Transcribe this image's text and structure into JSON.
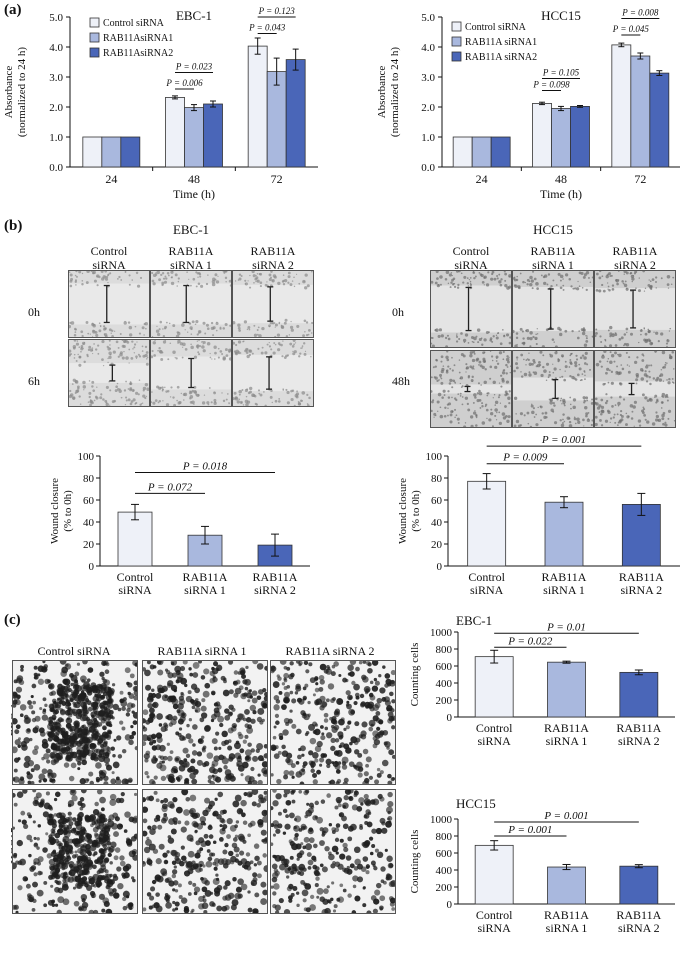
{
  "figure": {
    "panel_a_label": "(a)",
    "panel_b_label": "(b)",
    "panel_c_label": "(c)"
  },
  "colors": {
    "control": "#eef1f8",
    "sirna1": "#a9b8de",
    "sirna2": "#4a66b8",
    "axis": "#111111"
  },
  "panel_b": {
    "ebc1_title": "EBC-1",
    "hcc15_title": "HCC15",
    "columns": [
      "Control\nsiRNA",
      "RAB11A\nsiRNA 1",
      "RAB11A\nsiRNA 2"
    ],
    "ebc1_rows": [
      "0h",
      "6h"
    ],
    "hcc15_rows": [
      "0h",
      "48h"
    ]
  },
  "panel_c": {
    "columns": [
      "Control siRNA",
      "RAB11A siRNA 1",
      "RAB11A siRNA 2"
    ],
    "rows": [
      "EBC-1",
      "HCC15"
    ]
  },
  "chart_data": [
    {
      "id": "a-ebc1",
      "type": "bar",
      "title": "EBC-1",
      "xlabel": "Time (h)",
      "ylabel": "Absorbance\n(normalized to 24 h)",
      "ylim": [
        0,
        5
      ],
      "yticks": [
        "0.0",
        "1.0",
        "2.0",
        "3.0",
        "4.0",
        "5.0"
      ],
      "categories": [
        "24",
        "48",
        "72"
      ],
      "legend_position": "top-left",
      "series": [
        {
          "name": "Control siRNA",
          "values": [
            1.0,
            2.32,
            4.03
          ],
          "errors": [
            0,
            0.05,
            0.27
          ]
        },
        {
          "name": "RAB11AsiRNA1",
          "values": [
            1.0,
            1.98,
            3.18
          ],
          "errors": [
            0,
            0.1,
            0.45
          ]
        },
        {
          "name": "RAB11AsiRNA2",
          "values": [
            1.0,
            2.1,
            3.58
          ],
          "errors": [
            0,
            0.1,
            0.35
          ]
        }
      ],
      "annotations": [
        {
          "text": "P = 0.006",
          "cat": 1,
          "from": 0,
          "to": 1,
          "y": 2.6
        },
        {
          "text": "P = 0.023",
          "cat": 1,
          "from": 0,
          "to": 2,
          "y": 3.15
        },
        {
          "text": "P = 0.043",
          "cat": 2,
          "from": 0,
          "to": 1,
          "y": 4.45
        },
        {
          "text": "P = 0.123",
          "cat": 2,
          "from": 0,
          "to": 2,
          "y": 5.0
        }
      ]
    },
    {
      "id": "a-hcc15",
      "type": "bar",
      "title": "HCC15",
      "xlabel": "Time (h)",
      "ylabel": "Absorbance\n(normalized to 24 h)",
      "ylim": [
        0,
        5
      ],
      "yticks": [
        "0.0",
        "1.0",
        "2.0",
        "3.0",
        "4.0",
        "5.0"
      ],
      "categories": [
        "24",
        "48",
        "72"
      ],
      "legend_position": "top-left",
      "series": [
        {
          "name": "Control siRNA",
          "values": [
            1.0,
            2.12,
            4.07
          ],
          "errors": [
            0,
            0.04,
            0.06
          ]
        },
        {
          "name": "RAB11A siRNA1",
          "values": [
            1.0,
            1.95,
            3.7
          ],
          "errors": [
            0,
            0.07,
            0.1
          ]
        },
        {
          "name": "RAB11A siRNA2",
          "values": [
            1.0,
            2.02,
            3.13
          ],
          "errors": [
            0,
            0.03,
            0.08
          ]
        }
      ],
      "annotations": [
        {
          "text": "P = 0.098",
          "cat": 1,
          "from": 0,
          "to": 1,
          "y": 2.55
        },
        {
          "text": "P = 0.105",
          "cat": 1,
          "from": 0,
          "to": 2,
          "y": 2.95
        },
        {
          "text": "P = 0.045",
          "cat": 2,
          "from": 0,
          "to": 1,
          "y": 4.4
        },
        {
          "text": "P = 0.008",
          "cat": 2,
          "from": 0,
          "to": 2,
          "y": 4.95
        }
      ]
    },
    {
      "id": "b-ebc1",
      "type": "bar",
      "title": "",
      "xlabel": "",
      "ylabel": "Wound closure\n(% to 0h)",
      "ylim": [
        0,
        100
      ],
      "yticks": [
        "0",
        "20",
        "40",
        "60",
        "80",
        "100"
      ],
      "categories": [
        "Control\nsiRNA",
        "RAB11A\nsiRNA 1",
        "RAB11A\nsiRNA 2"
      ],
      "values": [
        49,
        28,
        19
      ],
      "errors": [
        7,
        8,
        10
      ],
      "annotations": [
        {
          "text": "P = 0.072",
          "from": 0,
          "to": 1,
          "y": 66
        },
        {
          "text": "P = 0.018",
          "from": 0,
          "to": 2,
          "y": 85
        }
      ]
    },
    {
      "id": "b-hcc15",
      "type": "bar",
      "title": "",
      "xlabel": "",
      "ylabel": "Wound closure\n(% to 0h)",
      "ylim": [
        0,
        100
      ],
      "yticks": [
        "0",
        "20",
        "40",
        "60",
        "80",
        "100"
      ],
      "categories": [
        "Control\nsiRNA",
        "RAB11A\nsiRNA 1",
        "RAB11A\nsiRNA 2"
      ],
      "values": [
        77,
        58,
        56
      ],
      "errors": [
        7,
        5,
        10
      ],
      "annotations": [
        {
          "text": "P = 0.009",
          "from": 0,
          "to": 1,
          "y": 93
        },
        {
          "text": "P = 0.001",
          "from": 0,
          "to": 2,
          "y": 109
        }
      ]
    },
    {
      "id": "c-ebc1",
      "type": "bar",
      "title": "EBC-1",
      "xlabel": "",
      "ylabel": "Counting cells",
      "ylim": [
        0,
        1000
      ],
      "yticks": [
        "0",
        "200",
        "400",
        "600",
        "800",
        "1000"
      ],
      "categories": [
        "Control\nsiRNA",
        "RAB11A\nsiRNA 1",
        "RAB11A\nsiRNA 2"
      ],
      "values": [
        710,
        645,
        525
      ],
      "errors": [
        75,
        12,
        28
      ],
      "annotations": [
        {
          "text": "P = 0.022",
          "from": 0,
          "to": 1,
          "y": 820
        },
        {
          "text": "P = 0.01",
          "from": 0,
          "to": 2,
          "y": 985
        }
      ]
    },
    {
      "id": "c-hcc15",
      "type": "bar",
      "title": "HCC15",
      "xlabel": "",
      "ylabel": "Counting cells",
      "ylim": [
        0,
        1000
      ],
      "yticks": [
        "0",
        "200",
        "400",
        "600",
        "800",
        "1000"
      ],
      "categories": [
        "Control\nsiRNA",
        "RAB11A\nsiRNA 1",
        "RAB11A\nsiRNA 2"
      ],
      "values": [
        690,
        435,
        445
      ],
      "errors": [
        55,
        30,
        18
      ],
      "annotations": [
        {
          "text": "P = 0.001",
          "from": 0,
          "to": 1,
          "y": 800
        },
        {
          "text": "P = 0.001",
          "from": 0,
          "to": 2,
          "y": 965
        }
      ]
    }
  ]
}
